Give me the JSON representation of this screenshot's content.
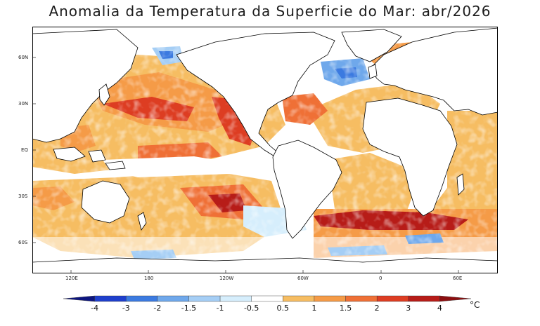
{
  "title": "Anomalia da Temperatura da Superficie do Mar: abr/2026",
  "lat_labels": [
    "60N",
    "30N",
    "EQ",
    "30S",
    "60S"
  ],
  "lon_labels": [
    "120E",
    "180",
    "120W",
    "60W",
    "0",
    "60E"
  ],
  "colorbar": {
    "labels": [
      "-4",
      "-3",
      "-2",
      "-1.5",
      "-1",
      "-0.5",
      "0.5",
      "1",
      "1.5",
      "2",
      "3",
      "4"
    ],
    "unit": "°C",
    "colors": [
      "#0d1680",
      "#1e3fcc",
      "#3b7ae0",
      "#6fa8eb",
      "#a5cef5",
      "#d6eefc",
      "#ffffff",
      "#f6bd62",
      "#f59b47",
      "#ef7036",
      "#dd3d22",
      "#b71c18",
      "#8c0f10"
    ]
  },
  "map": {
    "projection": "equirectangular",
    "ocean_background": "#ffffff",
    "land_color": "#ffffff",
    "coastline_color": "#000000"
  }
}
